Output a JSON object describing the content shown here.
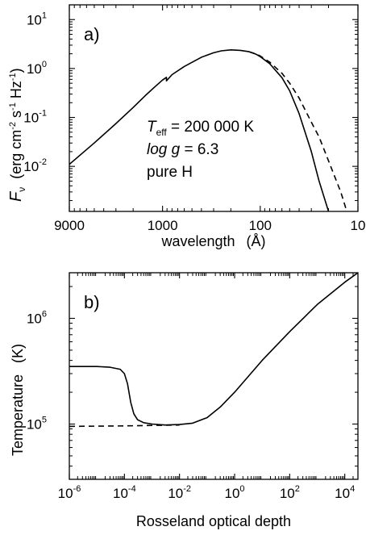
{
  "chart_data": [
    {
      "type": "line",
      "panel_label": "a)",
      "xlabel": "wavelength",
      "xlabel_unit": "(Å)",
      "ylabel_symbol": "F",
      "ylabel_subscript": "ν",
      "ylabel_unit": {
        "base": "(erg cm",
        "e1": "-2",
        "s": " s",
        "e2": "-1",
        "hz": " Hz",
        "e3": "-1",
        "close": ")"
      },
      "x_scale": "log-reversed",
      "xlim": [
        9000,
        10
      ],
      "y_scale": "log",
      "ylim": [
        0.0012,
        20
      ],
      "x_ticks": [
        {
          "value": 9000,
          "label": "9000"
        },
        {
          "value": 1000,
          "label": "1000"
        },
        {
          "value": 100,
          "label": "100"
        },
        {
          "value": 10,
          "label": "10"
        }
      ],
      "y_ticks": [
        {
          "value": 10,
          "base": "10",
          "exp": "1"
        },
        {
          "value": 1,
          "base": "10",
          "exp": "0"
        },
        {
          "value": 0.1,
          "base": "10",
          "exp": "-1"
        },
        {
          "value": 0.01,
          "base": "10",
          "exp": "-2"
        }
      ],
      "annotations": {
        "teff_symbol": "T",
        "teff_sub": "eff",
        "teff_value": " = 200 000 K",
        "logg_symbol": "log g",
        "logg_value": " = 6.3",
        "composition": "pure H"
      },
      "series": [
        {
          "style": "solid",
          "x": [
            9000,
            5000,
            3000,
            2000,
            1500,
            1200,
            1000,
            912,
            911,
            800,
            600,
            400,
            300,
            250,
            200,
            160,
            130,
            110,
            100,
            80,
            60,
            50,
            40,
            30,
            25,
            20,
            18
          ],
          "y": [
            0.011,
            0.03,
            0.075,
            0.16,
            0.28,
            0.42,
            0.58,
            0.66,
            0.56,
            0.75,
            1.1,
            1.7,
            2.1,
            2.3,
            2.4,
            2.35,
            2.2,
            1.95,
            1.75,
            1.25,
            0.65,
            0.35,
            0.12,
            0.02,
            0.005,
            0.0012,
            0.0005
          ]
        },
        {
          "style": "dashed",
          "x": [
            130,
            110,
            100,
            80,
            60,
            50,
            40,
            30,
            25,
            20,
            15,
            13
          ],
          "y": [
            2.2,
            1.98,
            1.8,
            1.35,
            0.8,
            0.5,
            0.25,
            0.08,
            0.04,
            0.013,
            0.003,
            0.0012
          ]
        }
      ]
    },
    {
      "type": "line",
      "panel_label": "b)",
      "xlabel": "Rosseland optical depth",
      "ylabel": "Temperature",
      "ylabel_unit": "(K)",
      "x_scale": "log",
      "xlim": [
        1e-06,
        30000
      ],
      "y_scale": "log",
      "ylim": [
        30000,
        2700000
      ],
      "x_ticks": [
        {
          "value": 1e-06,
          "base": "10",
          "exp": "-6"
        },
        {
          "value": 0.0001,
          "base": "10",
          "exp": "-4"
        },
        {
          "value": 0.01,
          "base": "10",
          "exp": "-2"
        },
        {
          "value": 1,
          "base": "10",
          "exp": "0"
        },
        {
          "value": 100,
          "base": "10",
          "exp": "2"
        },
        {
          "value": 10000,
          "base": "10",
          "exp": "4"
        }
      ],
      "y_ticks": [
        {
          "value": 100000,
          "base": "10",
          "exp": "5"
        },
        {
          "value": 1000000,
          "base": "10",
          "exp": "6"
        }
      ],
      "series": [
        {
          "style": "solid",
          "x": [
            1e-06,
            1e-05,
            3e-05,
            7e-05,
            0.0001,
            0.00013,
            0.00017,
            0.00022,
            0.0003,
            0.0005,
            0.001,
            0.003,
            0.01,
            0.03,
            0.1,
            0.3,
            1,
            10,
            100,
            1000,
            10000,
            30000
          ],
          "y": [
            350000,
            350000,
            345000,
            330000,
            300000,
            240000,
            160000,
            125000,
            110000,
            103000,
            100000,
            98000,
            99000,
            102000,
            115000,
            145000,
            200000,
            400000,
            750000,
            1350000,
            2200000,
            2700000
          ]
        },
        {
          "style": "dashed",
          "x": [
            1e-06,
            0.0001,
            0.001,
            0.01
          ],
          "y": [
            95000,
            96000,
            97000,
            98000
          ]
        }
      ]
    }
  ]
}
